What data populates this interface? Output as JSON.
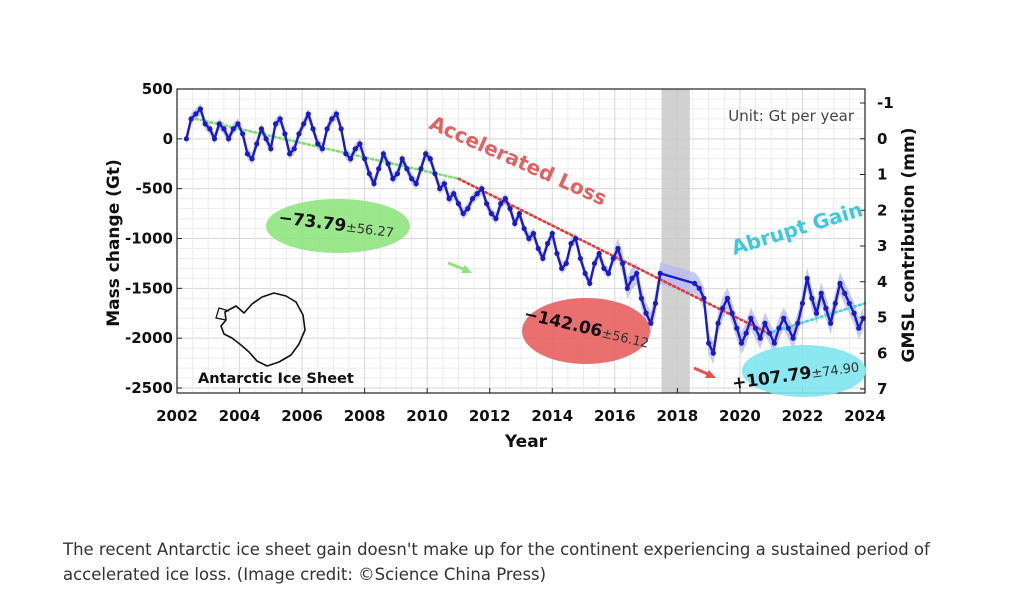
{
  "chart_data": {
    "type": "line",
    "title": "",
    "xlabel": "Year",
    "ylabel": "Mass change (Gt)",
    "y2label": "GMSL contribution (mm)",
    "xlim": [
      2002,
      2024
    ],
    "ylim": [
      -2550,
      500
    ],
    "x_ticks": [
      "2002",
      "2004",
      "2006",
      "2008",
      "2010",
      "2012",
      "2014",
      "2016",
      "2018",
      "2020",
      "2022",
      "2024"
    ],
    "y_ticks": [
      "500",
      "0",
      "-500",
      "-1000",
      "-1500",
      "-2000",
      "-2500"
    ],
    "y2_ticks": [
      "-1",
      "0",
      "1",
      "2",
      "3",
      "4",
      "5",
      "6",
      "7"
    ],
    "grid": true,
    "unit_note": "Unit: Gt per year",
    "data_gap": [
      2017.5,
      2018.4
    ],
    "series": [
      {
        "name": "",
        "color": "#1a1acd",
        "uncertainty_color": "#b3b8f0",
        "x": [
          2002.3,
          2002.45,
          2002.6,
          2002.75,
          2002.9,
          2003.05,
          2003.2,
          2003.35,
          2003.5,
          2003.65,
          2003.8,
          2003.95,
          2004.1,
          2004.25,
          2004.4,
          2004.55,
          2004.7,
          2004.85,
          2005.0,
          2005.15,
          2005.3,
          2005.45,
          2005.6,
          2005.75,
          2005.9,
          2006.05,
          2006.2,
          2006.35,
          2006.5,
          2006.65,
          2006.8,
          2006.95,
          2007.1,
          2007.25,
          2007.4,
          2007.55,
          2007.7,
          2007.85,
          2008.0,
          2008.15,
          2008.3,
          2008.45,
          2008.6,
          2008.75,
          2008.9,
          2009.05,
          2009.2,
          2009.35,
          2009.5,
          2009.65,
          2009.8,
          2009.95,
          2010.1,
          2010.25,
          2010.4,
          2010.55,
          2010.7,
          2010.85,
          2011.0,
          2011.15,
          2011.3,
          2011.45,
          2011.6,
          2011.75,
          2011.9,
          2012.05,
          2012.2,
          2012.35,
          2012.5,
          2012.65,
          2012.8,
          2012.95,
          2013.1,
          2013.25,
          2013.4,
          2013.55,
          2013.7,
          2013.85,
          2014.0,
          2014.15,
          2014.3,
          2014.45,
          2014.6,
          2014.75,
          2014.9,
          2015.05,
          2015.2,
          2015.35,
          2015.5,
          2015.65,
          2015.8,
          2015.95,
          2016.1,
          2016.25,
          2016.4,
          2016.55,
          2016.7,
          2016.85,
          2017.0,
          2017.15,
          2017.3,
          2017.45,
          2018.55,
          2018.7,
          2018.85,
          2019.0,
          2019.15,
          2019.3,
          2019.45,
          2019.6,
          2019.75,
          2019.9,
          2020.05,
          2020.2,
          2020.35,
          2020.5,
          2020.65,
          2020.8,
          2020.95,
          2021.1,
          2021.25,
          2021.4,
          2021.55,
          2021.7,
          2021.85,
          2022.0,
          2022.15,
          2022.3,
          2022.45,
          2022.6,
          2022.75,
          2022.9,
          2023.05,
          2023.2,
          2023.35,
          2023.5,
          2023.65,
          2023.8,
          2023.95
        ],
        "y": [
          0,
          200,
          250,
          300,
          150,
          100,
          0,
          150,
          100,
          0,
          100,
          150,
          50,
          -150,
          -200,
          -50,
          100,
          0,
          -100,
          150,
          200,
          50,
          -150,
          -100,
          50,
          150,
          250,
          100,
          -50,
          -100,
          100,
          200,
          250,
          100,
          -150,
          -200,
          -100,
          -50,
          -200,
          -350,
          -450,
          -300,
          -150,
          -250,
          -400,
          -350,
          -200,
          -300,
          -400,
          -450,
          -300,
          -150,
          -200,
          -350,
          -500,
          -450,
          -600,
          -550,
          -650,
          -750,
          -700,
          -600,
          -550,
          -500,
          -650,
          -750,
          -800,
          -650,
          -600,
          -700,
          -850,
          -750,
          -900,
          -1000,
          -950,
          -1100,
          -1200,
          -1050,
          -950,
          -1150,
          -1300,
          -1250,
          -1050,
          -1000,
          -1200,
          -1350,
          -1450,
          -1250,
          -1150,
          -1300,
          -1350,
          -1200,
          -1100,
          -1250,
          -1500,
          -1400,
          -1350,
          -1600,
          -1750,
          -1850,
          -1650,
          -1350,
          -1450,
          -1500,
          -1600,
          -2050,
          -2150,
          -1850,
          -1700,
          -1600,
          -1750,
          -1900,
          -2050,
          -1950,
          -1800,
          -1900,
          -2000,
          -1850,
          -1950,
          -2050,
          -1900,
          -1800,
          -1900,
          -2000,
          -1850,
          -1650,
          -1400,
          -1600,
          -1750,
          -1550,
          -1700,
          -1850,
          -1650,
          -1450,
          -1550,
          -1650,
          -1750,
          -1900,
          -1800
        ]
      }
    ],
    "trends": [
      {
        "label_value": "−73.79",
        "label_unc": "±56.27",
        "color": "#7ede6a",
        "from": [
          2002.6,
          200
        ],
        "to": [
          2011.0,
          -400
        ]
      },
      {
        "label_value": "−142.06",
        "label_unc": "±56.12",
        "color": "#e33a3a",
        "from": [
          2011.0,
          -400
        ],
        "to": [
          2020.9,
          -1950
        ]
      },
      {
        "label_value": "+107.79",
        "label_unc": "±74.90",
        "color": "#4fd0e0",
        "from": [
          2020.9,
          -1950
        ],
        "to": [
          2024.0,
          -1650
        ]
      }
    ],
    "annotations": {
      "accelerated": "Accelerated Loss",
      "abrupt": "Abrupt Gain",
      "inset": "Antarctic Ice Sheet"
    }
  },
  "caption": "The recent Antarctic ice sheet gain doesn't make up for the continent experiencing a sustained period of accelerated ice loss. (Image credit: ©Science China Press)"
}
